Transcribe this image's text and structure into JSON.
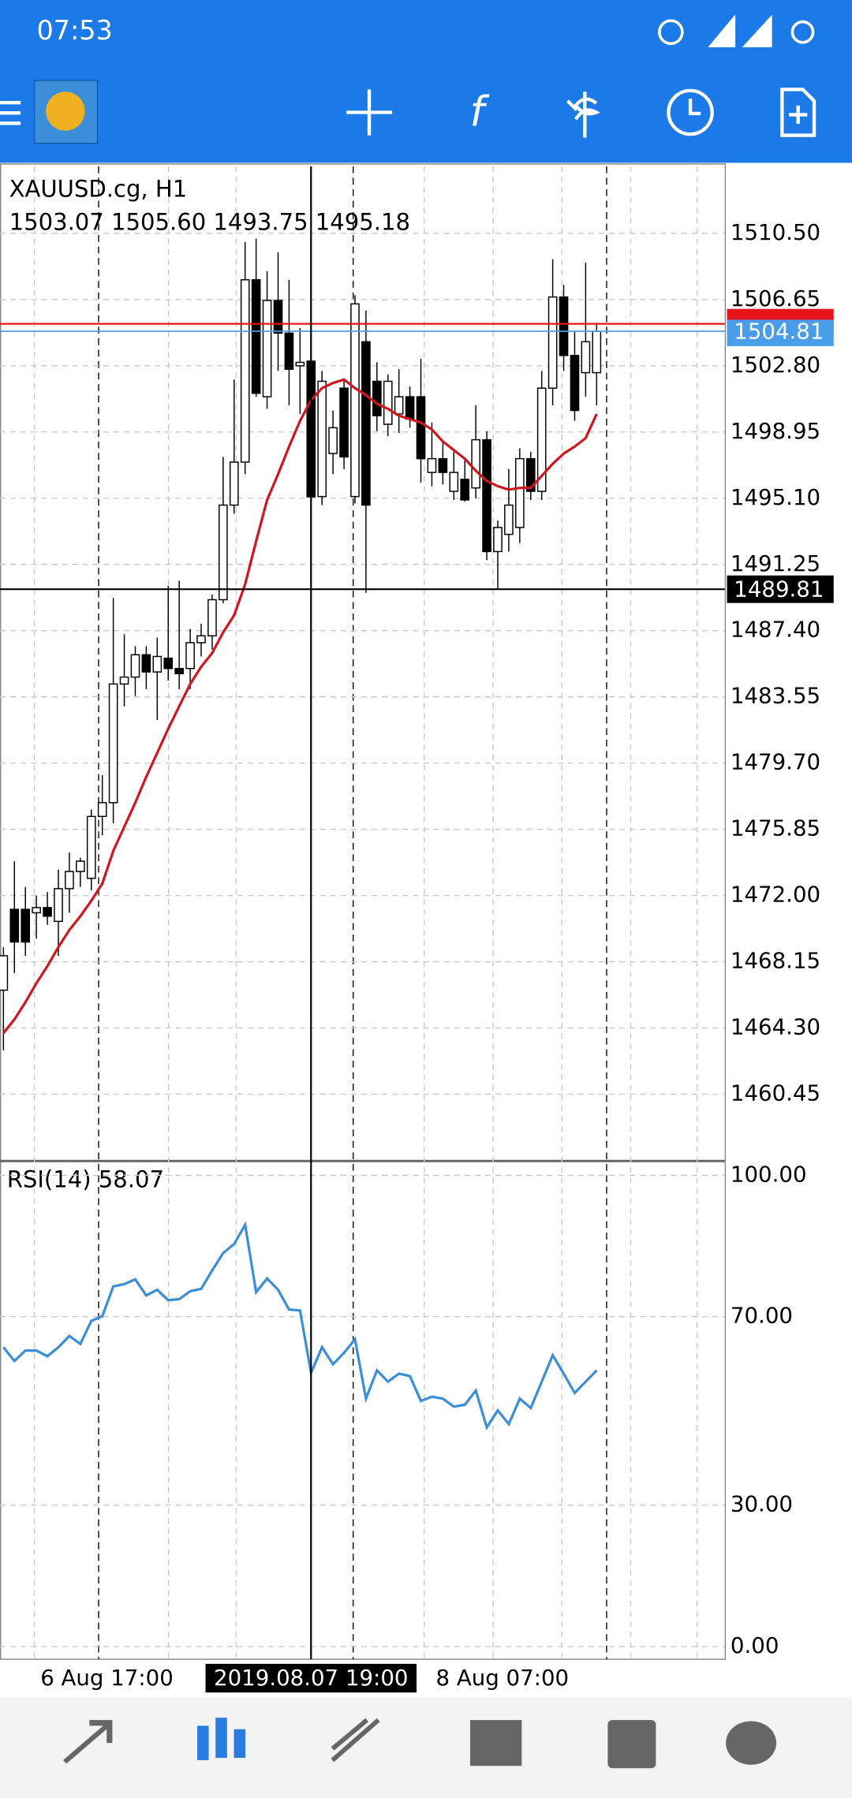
{
  "status_bar": {
    "time": "07:53"
  },
  "chart_data": {
    "type": "candlestick",
    "title": "XAUUSD.cg, H1",
    "ohlc_text": "1503.07 1505.60 1493.75 1495.18",
    "categories": [
      null,
      null,
      null,
      null,
      null,
      null,
      null,
      null,
      null,
      "6 Aug 17:00",
      null,
      null,
      null,
      null,
      null,
      null,
      null,
      null,
      null,
      null,
      null,
      null,
      null,
      null,
      null,
      null,
      null,
      null,
      null,
      null,
      null,
      null,
      null,
      null,
      null,
      null,
      null,
      null,
      null,
      null,
      null,
      null,
      null,
      null,
      null,
      "8 Aug 07:00",
      null,
      null,
      null,
      null,
      null,
      null,
      null,
      null,
      null
    ],
    "open": [
      1466.5,
      1471.2,
      1471.2,
      1471.0,
      1471.3,
      1470.5,
      1472.4,
      1473.4,
      1473.0,
      1476.6,
      1477.4,
      1484.3,
      1484.7,
      1486.0,
      1485.0,
      1485.8,
      1485.2,
      1485.2,
      1486.7,
      1487.1,
      1489.2,
      1494.7,
      1497.2,
      1507.8,
      1501.0,
      1506.6,
      1504.7,
      1502.8,
      1503.07,
      1495.2,
      1497.7,
      1501.5,
      1495.2,
      1504.2,
      1501.9,
      1499.4,
      1500.0,
      1501.0,
      1501.0,
      1496.6,
      1497.4,
      1495.5,
      1496.2,
      1495.7,
      1498.5,
      1492.0,
      1493.0,
      1493.4,
      1497.4,
      1495.5,
      1501.5,
      1506.8,
      1503.4,
      1502.4,
      1502.4
    ],
    "high": [
      1469.0,
      1474.0,
      1472.5,
      1472.0,
      1472.2,
      1473.5,
      1474.5,
      1474.2,
      1477.0,
      1479.0,
      1489.3,
      1487.2,
      1486.5,
      1486.5,
      1487.0,
      1490.0,
      1490.3,
      1487.5,
      1487.8,
      1489.5,
      1497.5,
      1502.0,
      1510.0,
      1510.2,
      1508.3,
      1509.4,
      1507.8,
      1505.0,
      1505.6,
      1502.5,
      1500.2,
      1502.0,
      1506.9,
      1506.0,
      1503.0,
      1502.3,
      1502.6,
      1501.6,
      1503.2,
      1499.5,
      1498.5,
      1497.8,
      1497.3,
      1500.5,
      1499.0,
      1493.8,
      1496.8,
      1498.0,
      1497.8,
      1502.5,
      1509.0,
      1507.5,
      1504.8,
      1508.8,
      1505.3
    ],
    "low": [
      1463.0,
      1467.5,
      1468.5,
      1469.5,
      1470.3,
      1468.5,
      1471.0,
      1472.5,
      1472.3,
      1475.5,
      1476.2,
      1483.0,
      1483.6,
      1484.0,
      1482.2,
      1484.5,
      1484.0,
      1484.0,
      1485.9,
      1486.3,
      1489.0,
      1494.2,
      1496.5,
      1501.0,
      1500.3,
      1502.5,
      1500.5,
      1500.0,
      1493.75,
      1494.7,
      1496.5,
      1496.8,
      1494.8,
      1489.6,
      1499.0,
      1498.7,
      1498.9,
      1499.2,
      1496.0,
      1495.8,
      1495.9,
      1495.0,
      1494.9,
      1495.1,
      1491.5,
      1489.8,
      1492.0,
      1492.5,
      1495.0,
      1495.0,
      1500.5,
      1502.5,
      1499.6,
      1501.0,
      1500.5
    ],
    "close": [
      1468.5,
      1469.3,
      1469.3,
      1471.3,
      1470.8,
      1472.4,
      1473.4,
      1474.0,
      1476.6,
      1477.4,
      1484.3,
      1484.7,
      1486.0,
      1485.0,
      1485.9,
      1485.2,
      1484.9,
      1486.7,
      1487.1,
      1489.2,
      1494.7,
      1497.2,
      1507.8,
      1501.2,
      1506.6,
      1504.7,
      1502.6,
      1503.0,
      1495.18,
      1501.9,
      1499.2,
      1497.5,
      1506.4,
      1494.7,
      1499.9,
      1501.9,
      1501.0,
      1499.7,
      1497.4,
      1497.4,
      1496.6,
      1496.6,
      1495.0,
      1498.5,
      1492.0,
      1493.4,
      1494.7,
      1497.4,
      1495.5,
      1501.5,
      1506.8,
      1503.4,
      1500.2,
      1504.2,
      1504.8
    ],
    "ma": {
      "color": "#d0161e",
      "values": [
        1464.0,
        1464.8,
        1465.8,
        1466.9,
        1467.9,
        1469.0,
        1470.0,
        1470.8,
        1471.7,
        1472.7,
        1474.6,
        1476.0,
        1477.4,
        1478.9,
        1480.3,
        1481.7,
        1483.0,
        1484.3,
        1485.3,
        1486.1,
        1487.3,
        1488.3,
        1490.1,
        1492.6,
        1495.0,
        1496.5,
        1498.1,
        1499.6,
        1500.8,
        1501.5,
        1501.8,
        1502.0,
        1501.5,
        1501.1,
        1500.6,
        1500.3,
        1499.9,
        1499.7,
        1499.5,
        1499.1,
        1498.4,
        1497.9,
        1497.4,
        1496.7,
        1496.1,
        1495.8,
        1495.6,
        1495.7,
        1495.7,
        1496.4,
        1497.1,
        1497.7,
        1498.1,
        1498.6,
        1500.0
      ]
    },
    "ylim": [
      1456.6,
      1514.4
    ],
    "yticks": [
      {
        "value": 1510.5,
        "label": "1510.50"
      },
      {
        "value": 1506.65,
        "label": "1506.65"
      },
      {
        "value": 1502.8,
        "label": "1502.80"
      },
      {
        "value": 1498.95,
        "label": "1498.95"
      },
      {
        "value": 1495.1,
        "label": "1495.10"
      },
      {
        "value": 1491.25,
        "label": "1491.25"
      },
      {
        "value": 1487.4,
        "label": "1487.40"
      },
      {
        "value": 1483.55,
        "label": "1483.55"
      },
      {
        "value": 1479.7,
        "label": "1479.70"
      },
      {
        "value": 1475.85,
        "label": "1475.85"
      },
      {
        "value": 1472,
        "label": "1472.00"
      },
      {
        "value": 1468.15,
        "label": "1468.15"
      },
      {
        "value": 1464.3,
        "label": "1464.30"
      },
      {
        "value": 1460.45,
        "label": "1460.45"
      }
    ],
    "ask": {
      "value": 1505.24,
      "color": "#e8141c"
    },
    "bid": {
      "value": 1504.81,
      "color": "#4a9de8"
    },
    "crosshair": {
      "time": "2019.08.07 19:00",
      "price": 1489.81
    },
    "grid": true,
    "rsi": {
      "title": "RSI(14) 58.07",
      "color": "#3a8ed8",
      "values": [
        63.5,
        60.6,
        62.8,
        62.8,
        61.6,
        63.5,
        65.9,
        64.2,
        69.1,
        70.1,
        76.4,
        76.9,
        77.9,
        74.5,
        75.7,
        73.5,
        73.7,
        75.4,
        75.9,
        79.8,
        83.5,
        85.4,
        89.5,
        75.2,
        78.1,
        75.7,
        71.5,
        71.3,
        58.07,
        63.5,
        59.9,
        62.3,
        65.2,
        52.6,
        58.6,
        56.2,
        57.9,
        57.4,
        52.1,
        53.0,
        52.6,
        50.9,
        51.3,
        54.3,
        46.5,
        50.1,
        47.2,
        52.6,
        50.6,
        56.2,
        61.8,
        57.9,
        53.8,
        56.2,
        58.6
      ],
      "ylim": [
        -2.7,
        102.9
      ],
      "yticks": [
        {
          "value": 100,
          "label": "100.00"
        },
        {
          "value": 70,
          "label": "70.00"
        },
        {
          "value": 30,
          "label": "30.00"
        },
        {
          "value": 0,
          "label": "0.00"
        }
      ]
    }
  }
}
